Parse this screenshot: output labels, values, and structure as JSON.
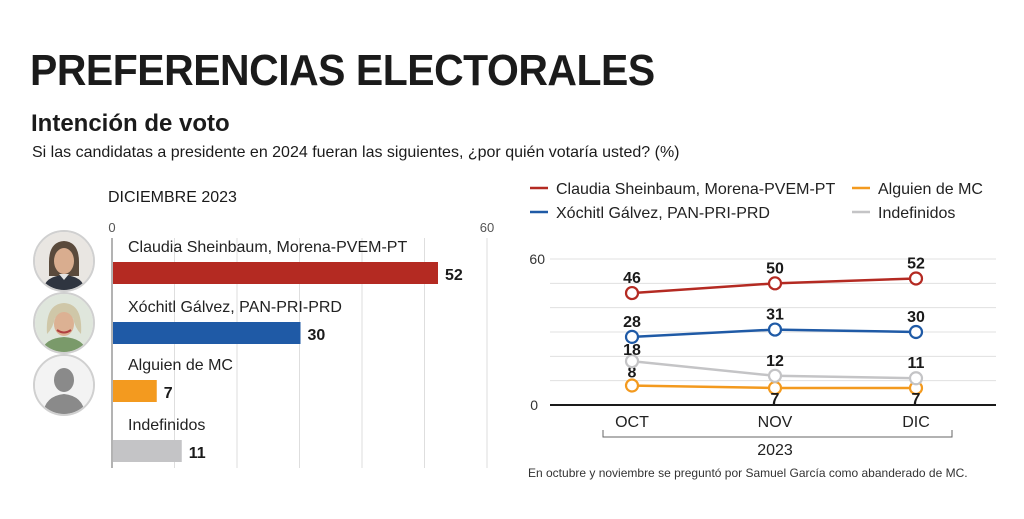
{
  "header": {
    "title": "PREFERENCIAS ELECTORALES",
    "subtitle": "Intención de voto",
    "question": "Si las candidatas a presidente en 2024 fueran las siguientes, ¿por quién votaría usted?  (%)"
  },
  "colors": {
    "sheinbaum": "#b42a22",
    "galvez": "#1f5aa6",
    "mc": "#f39a1f",
    "indefinidos": "#c4c4c6"
  },
  "chart_data": [
    {
      "type": "bar",
      "title": "DICIEMBRE 2023",
      "orientation": "horizontal",
      "xlim": [
        0,
        60
      ],
      "tick_labels": [
        "0",
        "60"
      ],
      "categories": [
        "Claudia Sheinbaum, Morena-PVEM-PT",
        "Xóchitl Gálvez, PAN-PRI-PRD",
        "Alguien de MC",
        "Indefinidos"
      ],
      "values": [
        52,
        30,
        7,
        11
      ],
      "value_labels": [
        "52",
        "30",
        "7",
        "11"
      ],
      "avatars": [
        "sheinbaum-photo-icon",
        "galvez-photo-icon",
        "unknown-person-icon"
      ]
    },
    {
      "type": "line",
      "x": [
        "OCT",
        "NOV",
        "DIC"
      ],
      "x_group_label": "2023",
      "ylim": [
        0,
        60
      ],
      "y_tick_labels": [
        "0",
        "60"
      ],
      "series": [
        {
          "name": "Claudia Sheinbaum, Morena-PVEM-PT",
          "key": "sheinbaum",
          "values": [
            46,
            50,
            52
          ],
          "labels": [
            "46",
            "50",
            "52"
          ]
        },
        {
          "name": "Xóchitl Gálvez, PAN-PRI-PRD",
          "key": "galvez",
          "values": [
            28,
            31,
            30
          ],
          "labels": [
            "28",
            "31",
            "30"
          ]
        },
        {
          "name": "Alguien de MC",
          "key": "mc",
          "values": [
            8,
            7,
            7
          ],
          "labels": [
            "8",
            "7",
            "7"
          ]
        },
        {
          "name": "Indefinidos",
          "key": "indefinidos",
          "values": [
            18,
            12,
            11
          ],
          "labels": [
            "18",
            "12",
            "11"
          ]
        }
      ],
      "legend_position": "top"
    }
  ],
  "footnote": "En octubre y noviembre se preguntó por Samuel García como abanderado de MC."
}
